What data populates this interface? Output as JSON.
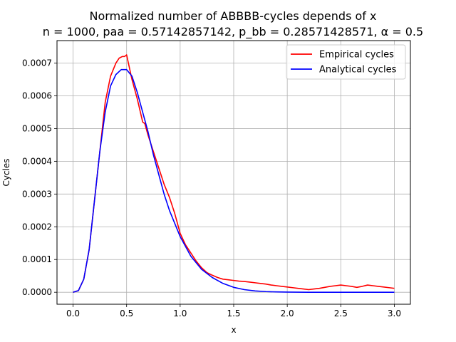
{
  "chart_data": {
    "type": "line",
    "title": "Normalized number of ABBBB-cycles depends of x",
    "subtitle": "n = 1000, paa = 0.57142857142, p_bb = 0.28571428571, α = 0.5",
    "xlabel": "x",
    "ylabel": "Cycles",
    "xlim": [
      -0.15,
      3.15
    ],
    "ylim": [
      -3.66e-05,
      0.0007686
    ],
    "xticks": [
      0.0,
      0.5,
      1.0,
      1.5,
      2.0,
      2.5,
      3.0
    ],
    "xtick_labels": [
      "0.0",
      "0.5",
      "1.0",
      "1.5",
      "2.0",
      "2.5",
      "3.0"
    ],
    "yticks": [
      0.0,
      0.0001,
      0.0002,
      0.0003,
      0.0004,
      0.0005,
      0.0006,
      0.0007
    ],
    "ytick_labels": [
      "0.0000",
      "0.0001",
      "0.0002",
      "0.0003",
      "0.0004",
      "0.0005",
      "0.0006",
      "0.0007"
    ],
    "grid": true,
    "legend_position": "top-right",
    "series": [
      {
        "name": "Empirical cycles",
        "color": "#ff0000",
        "x": [
          0.0,
          0.05,
          0.1,
          0.15,
          0.2,
          0.25,
          0.3,
          0.35,
          0.4,
          0.43,
          0.46,
          0.48,
          0.5,
          0.52,
          0.55,
          0.6,
          0.65,
          0.67,
          0.7,
          0.75,
          0.8,
          0.85,
          0.9,
          0.95,
          1.0,
          1.05,
          1.1,
          1.15,
          1.2,
          1.25,
          1.3,
          1.35,
          1.4,
          1.45,
          1.5,
          1.55,
          1.6,
          1.65,
          1.7,
          1.75,
          1.8,
          1.85,
          1.9,
          1.95,
          2.0,
          2.05,
          2.1,
          2.15,
          2.2,
          2.25,
          2.3,
          2.35,
          2.4,
          2.45,
          2.5,
          2.55,
          2.6,
          2.65,
          2.7,
          2.75,
          2.8,
          2.85,
          2.9,
          2.95,
          3.0
        ],
        "y": [
          0.0,
          5e-06,
          4e-05,
          0.00013,
          0.00028,
          0.00043,
          0.00058,
          0.00066,
          0.0007,
          0.000715,
          0.00072,
          0.00072,
          0.000725,
          0.000695,
          0.00065,
          0.00059,
          0.00052,
          0.000515,
          0.00048,
          0.00043,
          0.00038,
          0.00033,
          0.00029,
          0.00024,
          0.00018,
          0.000145,
          0.00012,
          9.5e-05,
          7.5e-05,
          6e-05,
          5.2e-05,
          4.5e-05,
          4e-05,
          3.8e-05,
          3.6e-05,
          3.4e-05,
          3.3e-05,
          3.1e-05,
          2.9e-05,
          2.7e-05,
          2.5e-05,
          2.2e-05,
          2e-05,
          1.8e-05,
          1.6e-05,
          1.4e-05,
          1.2e-05,
          1e-05,
          8e-06,
          1e-05,
          1.2e-05,
          1.5e-05,
          1.8e-05,
          2e-05,
          2.2e-05,
          2e-05,
          1.8e-05,
          1.5e-05,
          1.8e-05,
          2.2e-05,
          2e-05,
          1.8e-05,
          1.6e-05,
          1.4e-05,
          1.2e-05
        ]
      },
      {
        "name": "Analytical cycles",
        "color": "#0000ff",
        "x": [
          0.0,
          0.05,
          0.1,
          0.15,
          0.2,
          0.25,
          0.3,
          0.35,
          0.4,
          0.45,
          0.5,
          0.55,
          0.6,
          0.65,
          0.7,
          0.75,
          0.8,
          0.85,
          0.9,
          0.95,
          1.0,
          1.1,
          1.2,
          1.3,
          1.4,
          1.5,
          1.6,
          1.7,
          1.8,
          1.9,
          2.0,
          2.2,
          2.4,
          2.6,
          2.8,
          3.0
        ],
        "y": [
          0.0,
          5e-06,
          4e-05,
          0.00013,
          0.00028,
          0.00043,
          0.00055,
          0.00063,
          0.000665,
          0.00068,
          0.00068,
          0.00066,
          0.00061,
          0.00055,
          0.00049,
          0.00042,
          0.00036,
          0.0003,
          0.00025,
          0.00021,
          0.00017,
          0.00011,
          7e-05,
          4.5e-05,
          2.7e-05,
          1.5e-05,
          8e-06,
          4e-06,
          2e-06,
          1e-06,
          5e-07,
          0.0,
          0.0,
          0.0,
          0.0,
          0.0
        ]
      }
    ]
  }
}
